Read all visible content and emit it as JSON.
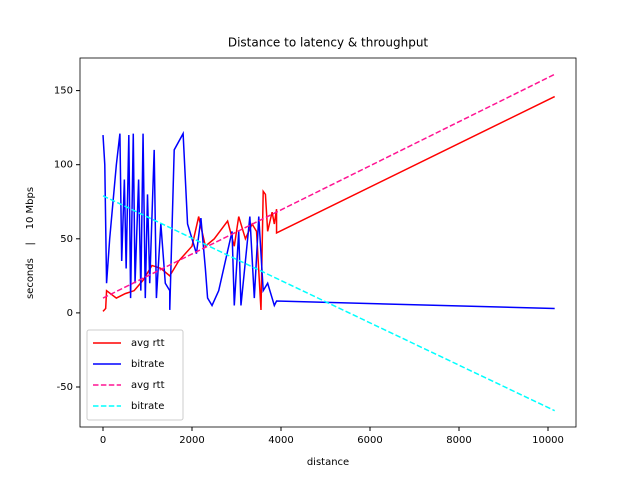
{
  "chart_data": {
    "type": "line",
    "title": "Distance to latency & throughput",
    "x_label": "distance",
    "y_label": "seconds    |    10 Mbps",
    "xlim": [
      -517,
      10629
    ],
    "ylim": [
      -77,
      172
    ],
    "xticks": [
      0,
      2000,
      4000,
      6000,
      8000,
      10000
    ],
    "yticks": [
      -50,
      0,
      50,
      100,
      150
    ],
    "legend": "lower left",
    "series": [
      {
        "name": "avg rtt",
        "color": "#ff0000",
        "linestyle": "solid",
        "x": [
          0,
          60,
          80,
          300,
          500,
          700,
          900,
          1100,
          1300,
          1500,
          1700,
          2000,
          2150,
          2300,
          2500,
          2800,
          2950,
          3050,
          3200,
          3350,
          3450,
          3550,
          3600,
          3650,
          3700,
          3800,
          3850,
          3900,
          3900,
          10150
        ],
        "values": [
          1,
          3,
          15,
          10,
          13,
          15,
          22,
          32,
          30,
          25,
          35,
          45,
          65,
          45,
          50,
          62,
          45,
          65,
          50,
          60,
          55,
          2,
          82,
          80,
          55,
          68,
          60,
          70,
          54,
          146
        ]
      },
      {
        "name": "bitrate",
        "color": "#0000ff",
        "linestyle": "solid",
        "x": [
          0,
          40,
          80,
          150,
          300,
          380,
          420,
          480,
          520,
          580,
          620,
          680,
          720,
          800,
          850,
          900,
          950,
          1000,
          1050,
          1150,
          1200,
          1300,
          1400,
          1500,
          1500,
          1600,
          1800,
          1900,
          2100,
          2200,
          2300,
          2350,
          2450,
          2600,
          2900,
          2950,
          3050,
          3100,
          3300,
          3400,
          3500,
          3600,
          3700,
          3800,
          3850,
          3900,
          10150
        ],
        "values": [
          120,
          100,
          20,
          50,
          100,
          121,
          35,
          90,
          30,
          120,
          10,
          121,
          20,
          90,
          15,
          121,
          10,
          80,
          20,
          110,
          10,
          60,
          20,
          15,
          2,
          110,
          121,
          60,
          40,
          64,
          30,
          10,
          5,
          15,
          55,
          5,
          55,
          5,
          65,
          10,
          65,
          15,
          20,
          10,
          5,
          8,
          3
        ]
      },
      {
        "name": "avg rtt",
        "color": "#ff1493",
        "linestyle": "dashed",
        "x": [
          0,
          10150
        ],
        "values": [
          10,
          161
        ]
      },
      {
        "name": "bitrate",
        "color": "#00ffff",
        "linestyle": "dashed",
        "x": [
          0,
          10150
        ],
        "values": [
          79,
          -66
        ]
      }
    ]
  }
}
